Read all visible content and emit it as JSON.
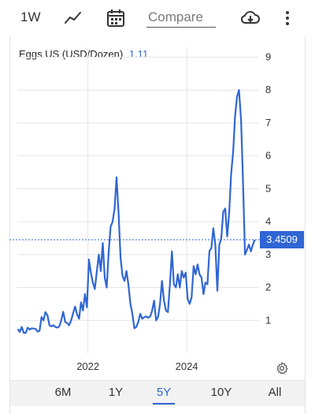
{
  "toolbar": {
    "range_label": "1W",
    "line_icon": "line-chart-icon",
    "calendar_icon": "calendar-icon",
    "compare_placeholder": "Compare",
    "download_icon": "cloud-download-icon",
    "menu_icon": "more-vertical-icon"
  },
  "legend": {
    "name": "Eggs US (USD/Dozen)",
    "value": "1.11"
  },
  "last_value_tag": "3.4509",
  "settings_icon": "gear-icon",
  "ranges": [
    {
      "label": "6M",
      "active": false
    },
    {
      "label": "1Y",
      "active": false
    },
    {
      "label": "5Y",
      "active": true
    },
    {
      "label": "10Y",
      "active": false
    },
    {
      "label": "All",
      "active": false
    }
  ],
  "colors": {
    "line": "#2f66d4",
    "grid": "#e4e4e4",
    "accent": "#2f66d4"
  },
  "chart_data": {
    "type": "line",
    "title": "",
    "xlabel": "",
    "ylabel": "",
    "x_tick_labels": [
      "2022",
      "2024"
    ],
    "y_tick_labels": [
      "1",
      "2",
      "3",
      "4",
      "5",
      "6",
      "7",
      "8",
      "9"
    ],
    "xlim": [
      2020.57,
      2025.45
    ],
    "ylim": [
      0,
      9.3
    ],
    "last_value": 3.4509,
    "series": [
      {
        "name": "Eggs US (USD/Dozen)",
        "x": [
          2020.58,
          2020.62,
          2020.66,
          2020.7,
          2020.74,
          2020.78,
          2020.82,
          2020.86,
          2020.9,
          2020.94,
          2020.98,
          2021.02,
          2021.06,
          2021.1,
          2021.14,
          2021.18,
          2021.22,
          2021.26,
          2021.3,
          2021.34,
          2021.38,
          2021.42,
          2021.46,
          2021.5,
          2021.54,
          2021.58,
          2021.62,
          2021.66,
          2021.7,
          2021.74,
          2021.78,
          2021.82,
          2021.86,
          2021.9,
          2021.94,
          2021.98,
          2022.02,
          2022.06,
          2022.1,
          2022.14,
          2022.18,
          2022.22,
          2022.26,
          2022.3,
          2022.34,
          2022.38,
          2022.42,
          2022.46,
          2022.5,
          2022.54,
          2022.58,
          2022.62,
          2022.66,
          2022.7,
          2022.74,
          2022.78,
          2022.82,
          2022.86,
          2022.9,
          2022.94,
          2022.98,
          2023.02,
          2023.06,
          2023.1,
          2023.14,
          2023.18,
          2023.22,
          2023.26,
          2023.3,
          2023.34,
          2023.38,
          2023.42,
          2023.46,
          2023.5,
          2023.54,
          2023.58,
          2023.62,
          2023.66,
          2023.7,
          2023.74,
          2023.78,
          2023.82,
          2023.86,
          2023.9,
          2023.94,
          2023.98,
          2024.02,
          2024.06,
          2024.1,
          2024.14,
          2024.18,
          2024.22,
          2024.26,
          2024.3,
          2024.34,
          2024.38,
          2024.42,
          2024.46,
          2024.5,
          2024.54,
          2024.58,
          2024.62,
          2024.66,
          2024.7,
          2024.74,
          2024.78,
          2024.82,
          2024.86,
          2024.9,
          2024.94,
          2024.98,
          2025.02,
          2025.06,
          2025.1,
          2025.14,
          2025.18,
          2025.22,
          2025.26,
          2025.3,
          2025.34,
          2025.38
        ],
        "values": [
          0.74,
          0.65,
          0.8,
          0.62,
          0.62,
          0.78,
          0.72,
          0.76,
          0.75,
          0.74,
          0.66,
          0.68,
          1.1,
          1.0,
          1.25,
          1.15,
          0.85,
          0.82,
          0.85,
          0.8,
          0.78,
          0.82,
          1.0,
          1.26,
          0.95,
          0.92,
          0.85,
          1.0,
          1.22,
          1.42,
          1.18,
          1.05,
          1.55,
          1.3,
          1.8,
          1.4,
          2.85,
          2.45,
          2.15,
          1.95,
          2.5,
          3.0,
          2.5,
          3.35,
          2.3,
          2.0,
          3.08,
          3.85,
          4.0,
          4.4,
          5.35,
          4.3,
          2.9,
          2.35,
          2.2,
          2.5,
          2.08,
          1.5,
          1.2,
          0.76,
          0.8,
          0.95,
          1.2,
          1.05,
          1.1,
          1.12,
          1.08,
          1.12,
          1.3,
          1.6,
          1.0,
          1.1,
          1.5,
          2.2,
          1.6,
          1.3,
          1.25,
          2.1,
          3.1,
          2.1,
          2.0,
          2.4,
          2.0,
          2.5,
          2.3,
          2.45,
          1.65,
          1.5,
          1.7,
          2.65,
          2.4,
          2.7,
          2.4,
          2.3,
          1.8,
          2.15,
          2.1,
          3.1,
          3.2,
          3.8,
          3.3,
          1.9,
          3.3,
          3.5,
          4.3,
          4.4,
          3.55,
          4.25,
          5.45,
          6.1,
          7.2,
          7.8,
          8.0,
          7.1,
          5.2,
          3.0,
          3.15,
          3.3,
          3.1,
          3.3,
          3.4509
        ]
      }
    ]
  }
}
